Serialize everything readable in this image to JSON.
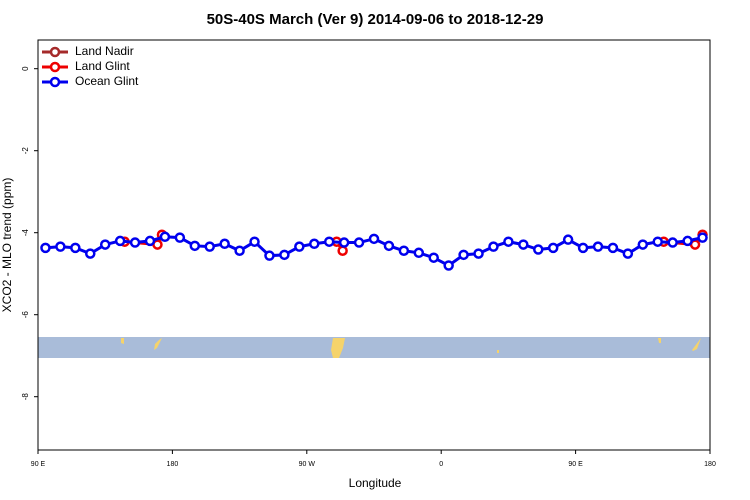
{
  "chart_data": {
    "type": "line",
    "title": "50S-40S March (Ver 9)   2014-09-06 to 2018-12-29",
    "x_label": "Longitude",
    "y_label": "XCO2 - MLO trend (ppm)",
    "xlim": [
      90,
      540
    ],
    "ylim": [
      -9.3,
      0.7
    ],
    "xticks": [
      {
        "value": 90,
        "label": "90 E"
      },
      180,
      {
        "value": 270,
        "label": "90 W"
      },
      {
        "value": 360,
        "label": "0"
      },
      {
        "value": 450,
        "label": "90 E"
      },
      {
        "value": 540,
        "label": "180"
      }
    ],
    "yticks": [
      0,
      -2,
      -4,
      -6,
      -8
    ],
    "legend": "top-left",
    "series": [
      {
        "name": "Land Nadir",
        "color": "#a52a2a",
        "x": [],
        "values": []
      },
      {
        "name": "Land Glint",
        "color": "#ee0000",
        "x": [
          148,
          170,
          173,
          200,
          290,
          294,
          400,
          509,
          530,
          535
        ],
        "values": [
          -4.22,
          -4.29,
          -4.05,
          null,
          -4.22,
          -4.44,
          null,
          -4.22,
          -4.29,
          -4.05
        ]
      },
      {
        "name": "Ocean Glint",
        "color": "#0000ee",
        "x": [
          95,
          105,
          115,
          125,
          135,
          145,
          155,
          165,
          175,
          185,
          195,
          205,
          215,
          225,
          235,
          245,
          255,
          265,
          275,
          285,
          295,
          305,
          315,
          325,
          335,
          345,
          355,
          365,
          375,
          385,
          395,
          405,
          415,
          425,
          435,
          445,
          455,
          465,
          475,
          485,
          495,
          505,
          515,
          525,
          535
        ],
        "values": [
          -4.37,
          -4.34,
          -4.37,
          -4.51,
          -4.29,
          -4.2,
          -4.24,
          -4.2,
          -4.1,
          -4.12,
          -4.32,
          -4.34,
          -4.27,
          -4.44,
          -4.22,
          -4.56,
          -4.54,
          -4.34,
          -4.27,
          -4.22,
          -4.24,
          -4.24,
          -4.15,
          -4.32,
          -4.44,
          -4.49,
          -4.61,
          -4.8,
          -4.54,
          -4.51,
          -4.34,
          -4.22,
          -4.29,
          -4.41,
          -4.37,
          -4.17,
          -4.37,
          -4.34,
          -4.37,
          -4.51,
          -4.29,
          -4.22,
          -4.24,
          -4.2,
          -4.12
        ]
      }
    ]
  }
}
